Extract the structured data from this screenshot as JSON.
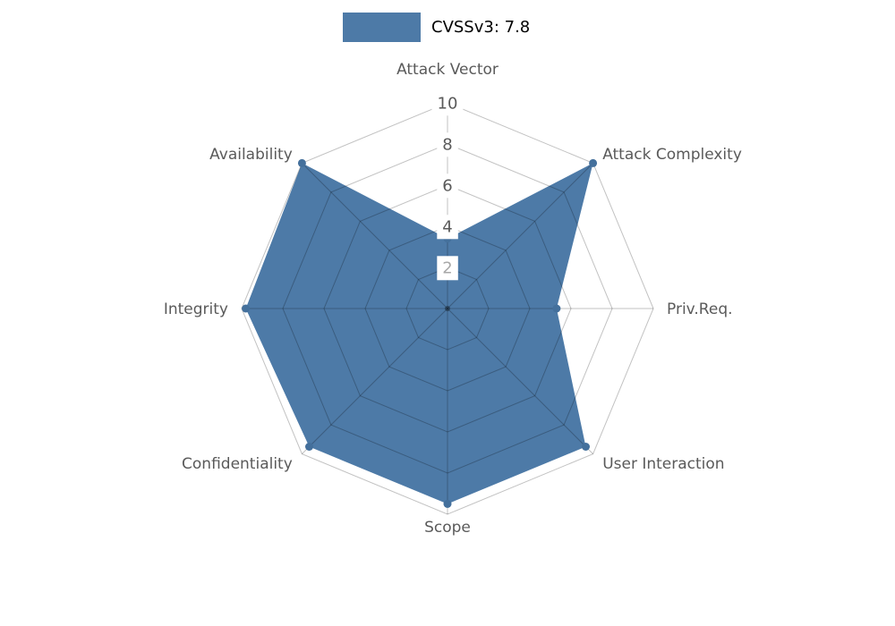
{
  "chart_data": {
    "type": "radar",
    "legend": {
      "label": "CVSSv3: 7.8",
      "position": "top-center"
    },
    "axes": [
      "Attack Vector",
      "Attack Complexity",
      "Priv.Req.",
      "User Interaction",
      "Scope",
      "Confidentiality",
      "Integrity",
      "Availability"
    ],
    "series": [
      {
        "name": "CVSSv3: 7.8",
        "values": [
          3.4,
          10,
          5.3,
          9.5,
          9.5,
          9.5,
          9.8,
          10
        ]
      }
    ],
    "ticks": [
      2,
      4,
      6,
      8,
      10
    ],
    "axis_range": [
      0,
      10
    ],
    "grid": true,
    "colors": {
      "fill": "#4d7aa7",
      "marker": "#44709c",
      "grid": "#000000",
      "axis_label": "#5a5a5a",
      "tick_label": "#595959",
      "tick_label_muted": "#a8a8a8",
      "legend_text": "#000000",
      "background": "#ffffff"
    }
  }
}
